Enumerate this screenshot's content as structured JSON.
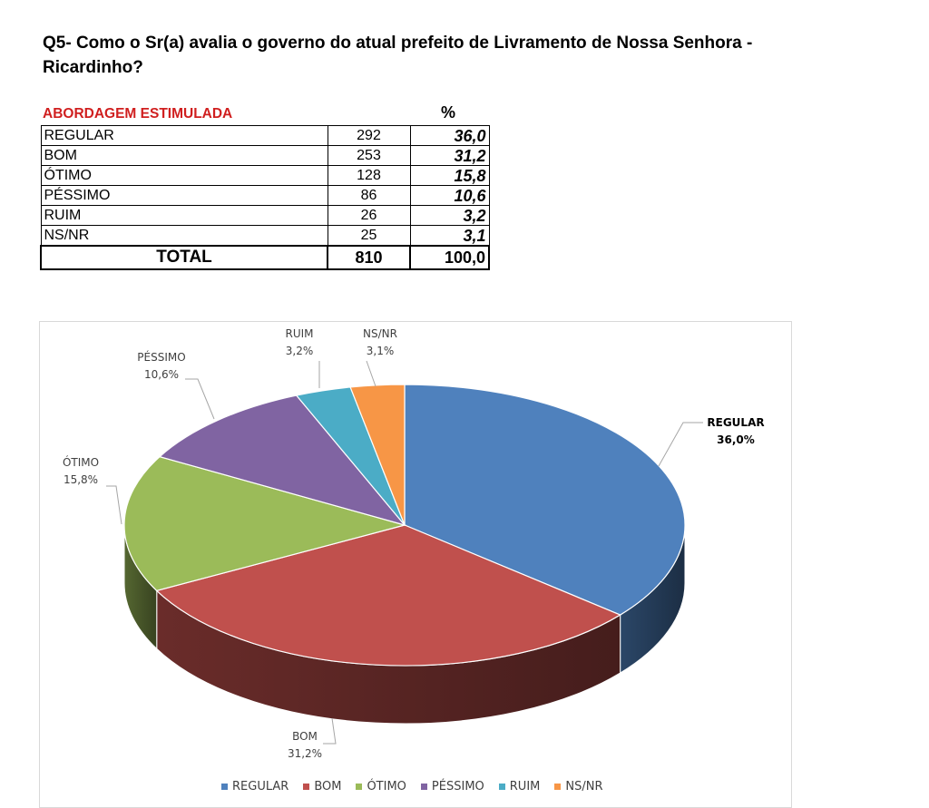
{
  "question": "Q5- Como o Sr(a) avalia o governo do atual prefeito de Livramento de Nossa Senhora - Ricardinho?",
  "table": {
    "section_label": "ABORDAGEM ESTIMULADA",
    "pct_header": "%",
    "rows": [
      {
        "category": "REGULAR",
        "count": "292",
        "percent": "36,0"
      },
      {
        "category": "BOM",
        "count": "253",
        "percent": "31,2"
      },
      {
        "category": "ÓTIMO",
        "count": "128",
        "percent": "15,8"
      },
      {
        "category": "PÉSSIMO",
        "count": "86",
        "percent": "10,6"
      },
      {
        "category": "RUIM",
        "count": "26",
        "percent": "3,2"
      },
      {
        "category": "NS/NR",
        "count": "25",
        "percent": "3,1"
      }
    ],
    "total": {
      "label": "TOTAL",
      "count": "810",
      "percent": "100,0"
    }
  },
  "chart_data": {
    "type": "pie",
    "title": "",
    "categories": [
      "REGULAR",
      "BOM",
      "ÓTIMO",
      "PÉSSIMO",
      "RUIM",
      "NS/NR"
    ],
    "values": [
      36.0,
      31.2,
      15.8,
      10.6,
      3.2,
      3.1
    ],
    "data_labels": [
      "36,0%",
      "31,2%",
      "15,8%",
      "10,6%",
      "3,2%",
      "3,1%"
    ],
    "colors": [
      "#4f81bd",
      "#c0504d",
      "#9bbb59",
      "#8064a2",
      "#4bacc6",
      "#f79646"
    ],
    "legend_position": "bottom",
    "style": "3d-pie"
  }
}
